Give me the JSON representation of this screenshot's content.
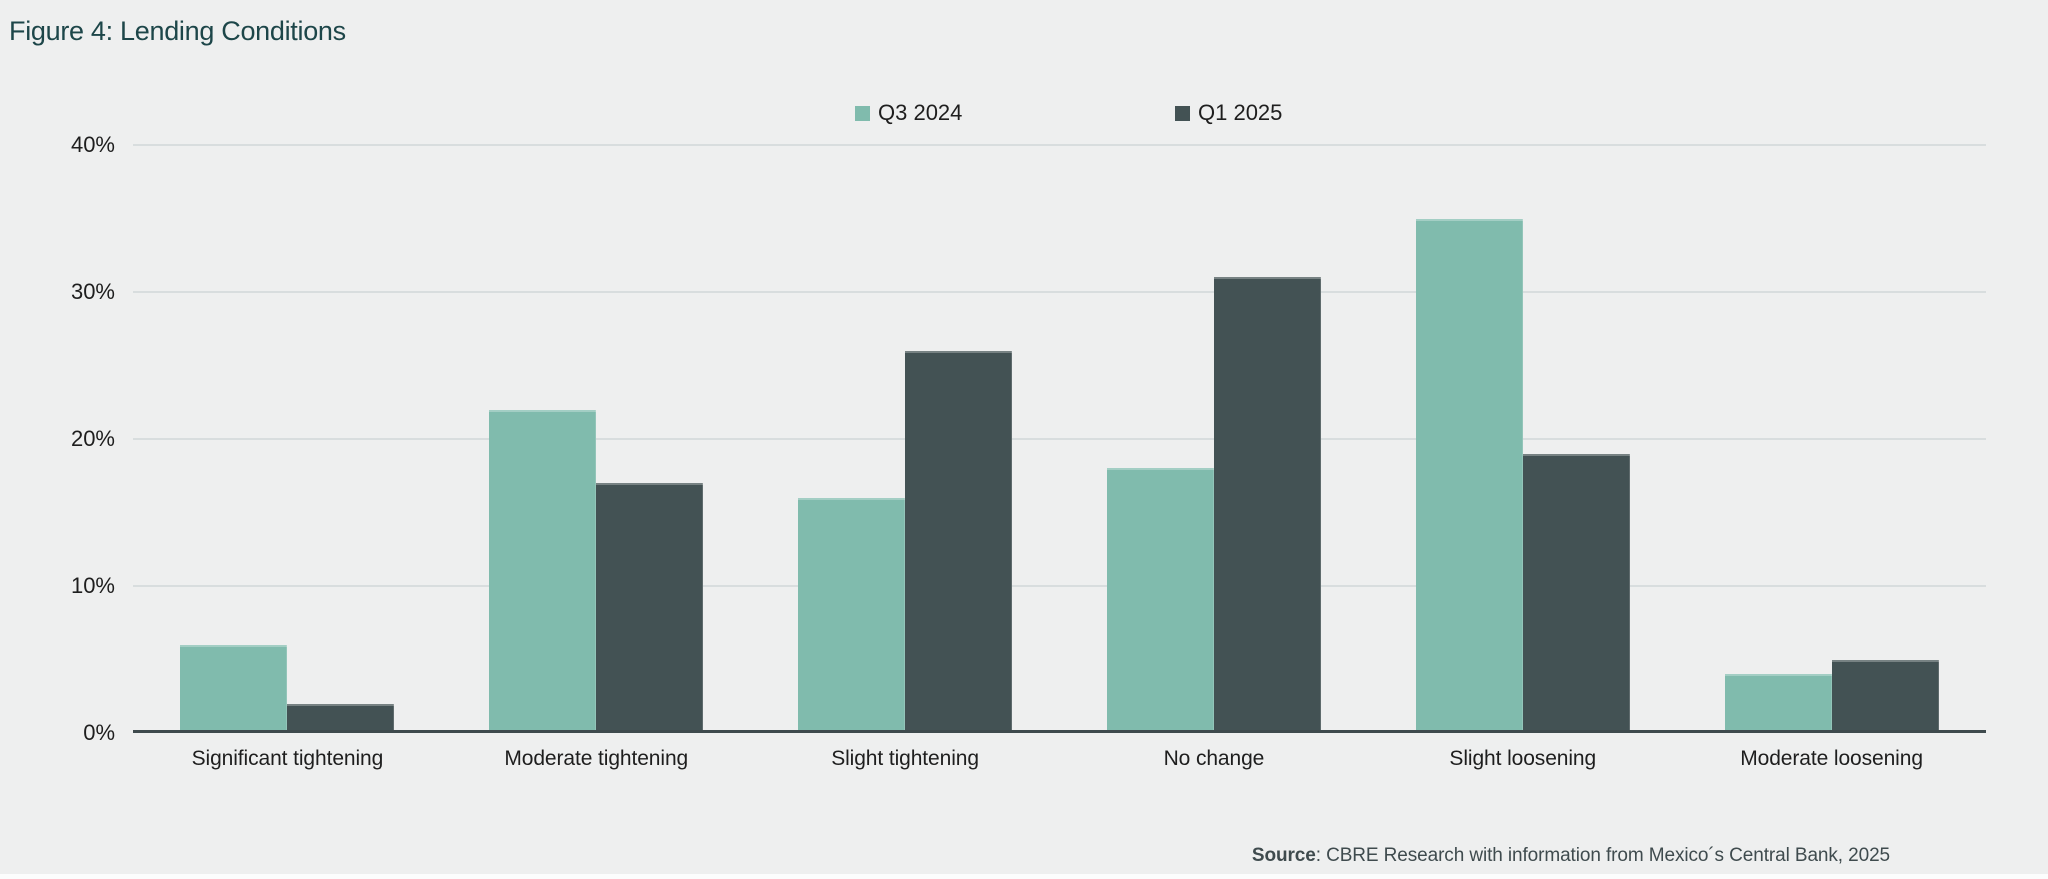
{
  "title": "Figure 4: Lending Conditions",
  "source": {
    "label_bold": "Source",
    "label_rest": ": CBRE Research with information from Mexico´s Central Bank, 2025"
  },
  "colors": {
    "background": "#EEEFEF",
    "series_q3_2024": "#80BBAD",
    "series_q1_2025": "#435254",
    "gridline": "#D8DDDE",
    "axis_line": "#3E4A4D",
    "title_text": "#1D4649",
    "label_text": "#1E1E1E",
    "source_text": "#3F4B4E"
  },
  "chart_data": {
    "type": "bar",
    "title": "Figure 4: Lending Conditions",
    "categories": [
      "Significant tightening",
      "Moderate tightening",
      "Slight tightening",
      "No change",
      "Slight loosening",
      "Moderate loosening"
    ],
    "series": [
      {
        "name": "Q3 2024",
        "color": "#80BBAD",
        "values": [
          6,
          22,
          16,
          18,
          35,
          4
        ]
      },
      {
        "name": "Q1 2025",
        "color": "#435254",
        "values": [
          2,
          17,
          26,
          31,
          19,
          5
        ]
      }
    ],
    "xlabel": "",
    "ylabel": "",
    "ylim": [
      0,
      40
    ],
    "yticks": [
      40,
      30,
      20,
      10,
      0
    ],
    "ytick_format": "percent",
    "grid": true,
    "legend_position": "top-center",
    "source_note": "Source: CBRE Research with information from Mexico´s Central Bank, 2025"
  }
}
